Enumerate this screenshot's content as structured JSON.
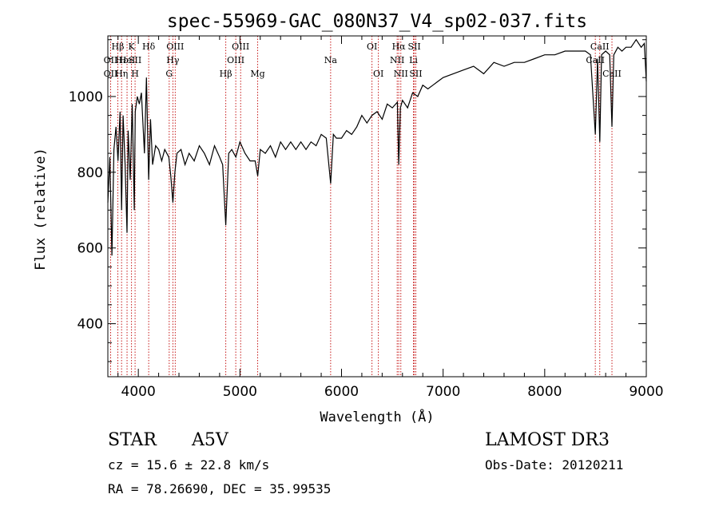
{
  "chart_data": {
    "type": "line",
    "title": "spec-55969-GAC_080N37_V4_sp02-037.fits",
    "xlabel": "Wavelength (Å)",
    "ylabel": "Flux (relative)",
    "xlim": [
      3700,
      9000
    ],
    "ylim": [
      260,
      1160
    ],
    "xticks": [
      4000,
      5000,
      6000,
      7000,
      8000,
      9000
    ],
    "yticks": [
      400,
      600,
      800,
      1000
    ],
    "grid": false,
    "series": [
      {
        "color": "#000000",
        "x": [
          3700,
          3720,
          3740,
          3760,
          3780,
          3800,
          3820,
          3835,
          3850,
          3870,
          3889,
          3900,
          3920,
          3940,
          3960,
          3970,
          3990,
          4010,
          4030,
          4060,
          4080,
          4102,
          4120,
          4140,
          4170,
          4200,
          4230,
          4260,
          4300,
          4320,
          4340,
          4360,
          4380,
          4420,
          4460,
          4500,
          4550,
          4600,
          4650,
          4700,
          4750,
          4800,
          4830,
          4861,
          4890,
          4920,
          4960,
          5000,
          5050,
          5100,
          5150,
          5175,
          5200,
          5250,
          5300,
          5350,
          5400,
          5450,
          5500,
          5550,
          5600,
          5650,
          5700,
          5750,
          5800,
          5850,
          5893,
          5920,
          5950,
          6000,
          6050,
          6100,
          6150,
          6200,
          6250,
          6300,
          6350,
          6400,
          6450,
          6500,
          6550,
          6563,
          6580,
          6600,
          6650,
          6700,
          6750,
          6800,
          6850,
          6900,
          6950,
          7000,
          7100,
          7200,
          7300,
          7400,
          7500,
          7600,
          7700,
          7800,
          7900,
          8000,
          8100,
          8200,
          8300,
          8400,
          8450,
          8498,
          8520,
          8542,
          8560,
          8600,
          8640,
          8662,
          8680,
          8720,
          8760,
          8800,
          8850,
          8900,
          8950,
          8980,
          9000
        ],
        "values": [
          720,
          840,
          580,
          860,
          920,
          830,
          960,
          700,
          950,
          820,
          640,
          910,
          780,
          980,
          700,
          960,
          1000,
          980,
          1010,
          850,
          1050,
          780,
          940,
          820,
          870,
          860,
          830,
          860,
          840,
          790,
          720,
          800,
          850,
          860,
          820,
          850,
          830,
          870,
          850,
          820,
          870,
          840,
          820,
          660,
          850,
          860,
          840,
          880,
          850,
          830,
          830,
          790,
          860,
          850,
          870,
          840,
          880,
          860,
          880,
          860,
          880,
          860,
          880,
          870,
          900,
          890,
          770,
          900,
          890,
          890,
          910,
          900,
          920,
          950,
          930,
          950,
          960,
          940,
          980,
          970,
          985,
          820,
          970,
          990,
          970,
          1010,
          1000,
          1030,
          1020,
          1030,
          1040,
          1050,
          1060,
          1070,
          1080,
          1060,
          1090,
          1080,
          1090,
          1090,
          1100,
          1110,
          1110,
          1120,
          1120,
          1120,
          1110,
          900,
          1100,
          880,
          1110,
          1120,
          1110,
          920,
          1110,
          1130,
          1120,
          1130,
          1130,
          1150,
          1130,
          1140,
          1040
        ]
      }
    ],
    "lines": [
      {
        "label": "Hβ",
        "x": 3798,
        "row": 0
      },
      {
        "label": "OII",
        "x": 3727,
        "row": 1
      },
      {
        "label": "OII",
        "x": 3727,
        "row": 2
      },
      {
        "label": "Hε",
        "x": 3835,
        "row": 1
      },
      {
        "label": "Hη",
        "x": 3835,
        "row": 2
      },
      {
        "label": "HeI",
        "x": 3889,
        "row": 1
      },
      {
        "label": "K",
        "x": 3933,
        "row": 0
      },
      {
        "label": "SII",
        "x": 3968,
        "row": 1
      },
      {
        "label": "H",
        "x": 3968,
        "row": 2
      },
      {
        "label": "Hδ",
        "x": 4102,
        "row": 0
      },
      {
        "label": "OIII",
        "x": 4363,
        "row": 0
      },
      {
        "label": "Hγ",
        "x": 4340,
        "row": 1
      },
      {
        "label": "G",
        "x": 4304,
        "row": 2
      },
      {
        "label": "Hβ",
        "x": 4861,
        "row": 2
      },
      {
        "label": "OIII",
        "x": 5007,
        "row": 0
      },
      {
        "label": "OIII",
        "x": 4959,
        "row": 1
      },
      {
        "label": "Mg",
        "x": 5175,
        "row": 2
      },
      {
        "label": "Na",
        "x": 5893,
        "row": 1
      },
      {
        "label": "OI",
        "x": 6300,
        "row": 0
      },
      {
        "label": "OI",
        "x": 6363,
        "row": 2
      },
      {
        "label": "Hα",
        "x": 6563,
        "row": 0
      },
      {
        "label": "SII",
        "x": 6717,
        "row": 0
      },
      {
        "label": "NII",
        "x": 6548,
        "row": 1
      },
      {
        "label": "Li",
        "x": 6708,
        "row": 1
      },
      {
        "label": "NII",
        "x": 6584,
        "row": 2
      },
      {
        "label": "SII",
        "x": 6731,
        "row": 2
      },
      {
        "label": "CaII",
        "x": 8542,
        "row": 0
      },
      {
        "label": "CaII",
        "x": 8498,
        "row": 1
      },
      {
        "label": "CaII",
        "x": 8662,
        "row": 2
      }
    ]
  },
  "info": {
    "star_label": "STAR",
    "spectral_type": "A5V",
    "cz": "cz = 15.6 ± 22.8 km/s",
    "coords": "RA =  78.26690, DEC =  35.99535",
    "survey": "LAMOST DR3",
    "obs_date": "Obs-Date: 20120211"
  }
}
